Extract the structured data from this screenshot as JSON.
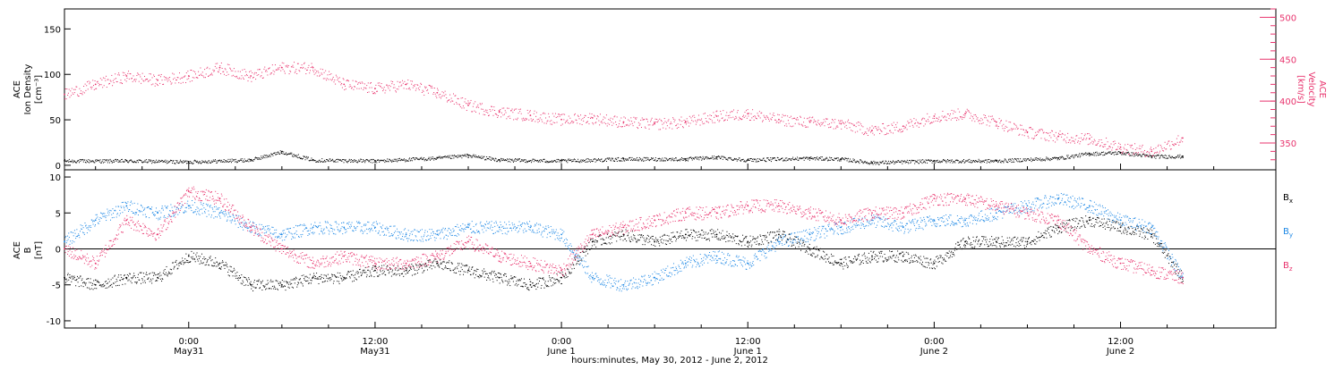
{
  "colors": {
    "black": "#000000",
    "pink": "#e8336d",
    "blue": "#1e88e5"
  },
  "x_axis": {
    "title": "hours:minutes, May 30, 2012 - June  2, 2012",
    "ticks": [
      {
        "hour": 6,
        "label": "0:00",
        "sublabel": "May31"
      },
      {
        "hour": 18,
        "label": "12:00",
        "sublabel": "May31"
      },
      {
        "hour": 30,
        "label": "0:00",
        "sublabel": "June 1"
      },
      {
        "hour": 42,
        "label": "12:00",
        "sublabel": "June 1"
      },
      {
        "hour": 54,
        "label": "0:00",
        "sublabel": "June 2"
      },
      {
        "hour": 66,
        "label": "12:00",
        "sublabel": "June 2"
      }
    ]
  },
  "chart_data": [
    {
      "type": "scatter",
      "panel": "top",
      "ylabel": "ACE Ion Density [cm⁻³]",
      "ylabel_lines": [
        "ACE",
        "Ion Density",
        "[cm⁻³]"
      ],
      "ylim": [
        -5,
        172
      ],
      "yticks": [
        0,
        50,
        100,
        150
      ],
      "y2label": "ACE Velocity [km/s]",
      "y2label_lines": [
        "ACE",
        "Velocity",
        "[km/s]"
      ],
      "y2lim": [
        318,
        510
      ],
      "y2ticks": [
        350,
        400,
        450,
        500
      ],
      "xlim": [
        -2,
        76
      ],
      "series": [
        {
          "name": "Ion Density",
          "axis": "left",
          "color": "#000000",
          "points": [
            [
              -2,
              5
            ],
            [
              2,
              5
            ],
            [
              6,
              4
            ],
            [
              10,
              6
            ],
            [
              12,
              15
            ],
            [
              14,
              6
            ],
            [
              18,
              5
            ],
            [
              22,
              8
            ],
            [
              24,
              11
            ],
            [
              26,
              6
            ],
            [
              30,
              5
            ],
            [
              34,
              7
            ],
            [
              38,
              7
            ],
            [
              40,
              9
            ],
            [
              42,
              6
            ],
            [
              46,
              8
            ],
            [
              48,
              7
            ],
            [
              50,
              3
            ],
            [
              54,
              5
            ],
            [
              58,
              5
            ],
            [
              62,
              8
            ],
            [
              64,
              13
            ],
            [
              66,
              14
            ],
            [
              68,
              10
            ],
            [
              70,
              10
            ]
          ]
        },
        {
          "name": "Velocity",
          "axis": "right",
          "color": "#e8336d",
          "points": [
            [
              -2,
              408
            ],
            [
              0,
              420
            ],
            [
              2,
              430
            ],
            [
              4,
              425
            ],
            [
              6,
              430
            ],
            [
              8,
              440
            ],
            [
              10,
              430
            ],
            [
              12,
              440
            ],
            [
              14,
              440
            ],
            [
              16,
              420
            ],
            [
              18,
              415
            ],
            [
              20,
              420
            ],
            [
              22,
              410
            ],
            [
              24,
              395
            ],
            [
              26,
              387
            ],
            [
              28,
              383
            ],
            [
              30,
              378
            ],
            [
              32,
              380
            ],
            [
              34,
              375
            ],
            [
              36,
              373
            ],
            [
              38,
              375
            ],
            [
              40,
              382
            ],
            [
              42,
              385
            ],
            [
              44,
              378
            ],
            [
              46,
              375
            ],
            [
              48,
              373
            ],
            [
              50,
              365
            ],
            [
              52,
              370
            ],
            [
              54,
              382
            ],
            [
              56,
              385
            ],
            [
              58,
              375
            ],
            [
              60,
              363
            ],
            [
              62,
              358
            ],
            [
              64,
              355
            ],
            [
              66,
              345
            ],
            [
              68,
              340
            ],
            [
              70,
              356
            ]
          ]
        }
      ]
    },
    {
      "type": "scatter",
      "panel": "bottom",
      "ylabel": "ACE B [nT]",
      "ylabel_lines": [
        "ACE",
        "B",
        "[nT]"
      ],
      "ylim": [
        -11,
        11
      ],
      "yticks": [
        -10,
        -5,
        0,
        5,
        10
      ],
      "xlim": [
        -2,
        76
      ],
      "legend_position": "right",
      "series": [
        {
          "name": "Bx",
          "color": "#000000",
          "points": [
            [
              -2,
              -4
            ],
            [
              0,
              -5
            ],
            [
              2,
              -4
            ],
            [
              4,
              -4
            ],
            [
              6,
              -1
            ],
            [
              8,
              -2
            ],
            [
              10,
              -5
            ],
            [
              12,
              -5
            ],
            [
              14,
              -4
            ],
            [
              16,
              -4
            ],
            [
              18,
              -3
            ],
            [
              20,
              -3
            ],
            [
              22,
              -2
            ],
            [
              24,
              -3
            ],
            [
              26,
              -4
            ],
            [
              28,
              -5
            ],
            [
              30,
              -4
            ],
            [
              32,
              1
            ],
            [
              34,
              2
            ],
            [
              36,
              1
            ],
            [
              38,
              2
            ],
            [
              40,
              2
            ],
            [
              42,
              1
            ],
            [
              44,
              2
            ],
            [
              46,
              0
            ],
            [
              48,
              -2
            ],
            [
              50,
              -1
            ],
            [
              52,
              -1
            ],
            [
              54,
              -2
            ],
            [
              56,
              1
            ],
            [
              58,
              1
            ],
            [
              60,
              1
            ],
            [
              62,
              3
            ],
            [
              64,
              4
            ],
            [
              66,
              3
            ],
            [
              68,
              2
            ],
            [
              70,
              -4
            ]
          ]
        },
        {
          "name": "By",
          "color": "#1e88e5",
          "points": [
            [
              -2,
              1
            ],
            [
              0,
              4
            ],
            [
              2,
              6
            ],
            [
              4,
              5
            ],
            [
              6,
              6
            ],
            [
              8,
              5
            ],
            [
              10,
              3
            ],
            [
              12,
              2
            ],
            [
              14,
              3
            ],
            [
              16,
              3
            ],
            [
              18,
              3
            ],
            [
              20,
              2
            ],
            [
              22,
              2
            ],
            [
              24,
              3
            ],
            [
              26,
              3
            ],
            [
              28,
              3
            ],
            [
              30,
              2
            ],
            [
              32,
              -4
            ],
            [
              34,
              -5
            ],
            [
              36,
              -4
            ],
            [
              38,
              -2
            ],
            [
              40,
              -1
            ],
            [
              42,
              -2
            ],
            [
              44,
              1
            ],
            [
              46,
              2
            ],
            [
              48,
              3
            ],
            [
              50,
              4
            ],
            [
              52,
              3
            ],
            [
              54,
              4
            ],
            [
              56,
              4
            ],
            [
              58,
              5
            ],
            [
              60,
              6
            ],
            [
              62,
              7
            ],
            [
              64,
              6
            ],
            [
              66,
              4
            ],
            [
              68,
              3
            ],
            [
              70,
              -4
            ]
          ]
        },
        {
          "name": "Bz",
          "color": "#e8336d",
          "points": [
            [
              -2,
              0
            ],
            [
              0,
              -2
            ],
            [
              2,
              4
            ],
            [
              4,
              2
            ],
            [
              6,
              8
            ],
            [
              8,
              7
            ],
            [
              10,
              3
            ],
            [
              12,
              0
            ],
            [
              14,
              -2
            ],
            [
              16,
              -1
            ],
            [
              18,
              -2
            ],
            [
              20,
              -2
            ],
            [
              22,
              -1
            ],
            [
              24,
              1
            ],
            [
              26,
              -1
            ],
            [
              28,
              -2
            ],
            [
              30,
              -3
            ],
            [
              32,
              2
            ],
            [
              34,
              3
            ],
            [
              36,
              4
            ],
            [
              38,
              5
            ],
            [
              40,
              5
            ],
            [
              42,
              6
            ],
            [
              44,
              6
            ],
            [
              46,
              5
            ],
            [
              48,
              4
            ],
            [
              50,
              5
            ],
            [
              52,
              5
            ],
            [
              54,
              7
            ],
            [
              56,
              7
            ],
            [
              58,
              6
            ],
            [
              60,
              5
            ],
            [
              62,
              4
            ],
            [
              64,
              0
            ],
            [
              66,
              -2
            ],
            [
              68,
              -3
            ],
            [
              70,
              -4
            ]
          ]
        }
      ]
    }
  ]
}
